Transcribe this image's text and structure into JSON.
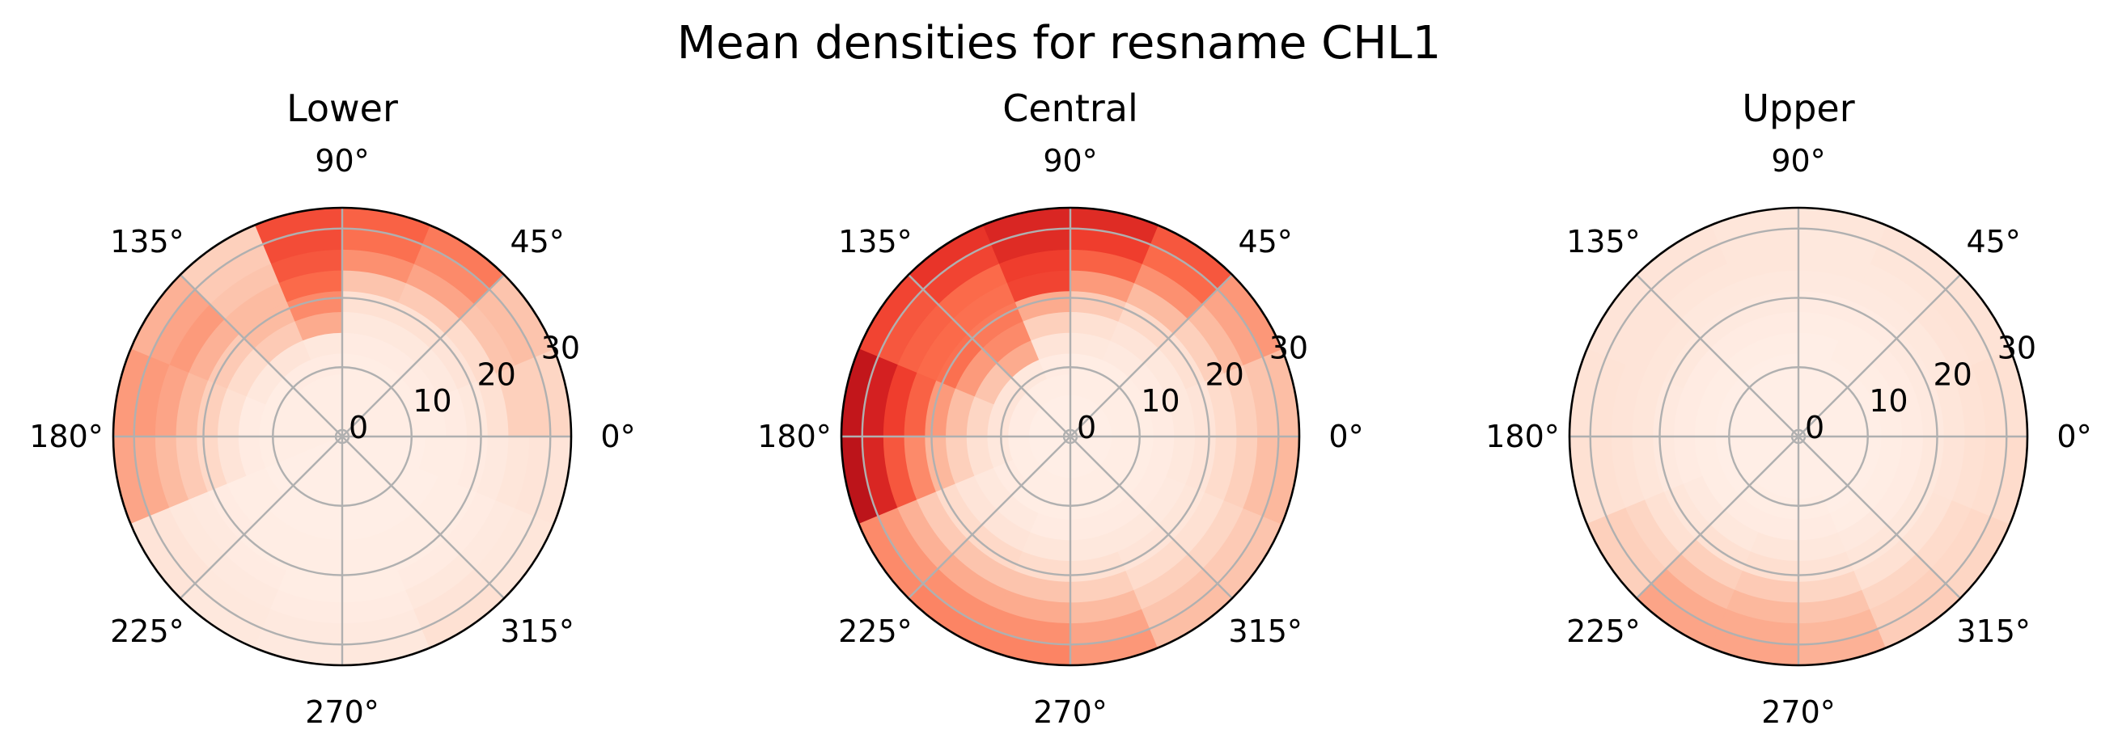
{
  "figure": {
    "title": "Mean densities for resname CHL1"
  },
  "chart_data": [
    {
      "type": "heatmap",
      "projection": "polar",
      "title": "Lower",
      "theta_ticks": [
        "0°",
        "45°",
        "90°",
        "135°",
        "180°",
        "225°",
        "270°",
        "315°"
      ],
      "r_ticks": [
        "0",
        "10",
        "20",
        "30"
      ],
      "r_range": [
        0,
        33
      ],
      "colormap": "Reds",
      "value_range": [
        0,
        1
      ],
      "grid": true,
      "theta_bins": 16,
      "r_edges": [
        0,
        3,
        6,
        9,
        12,
        15,
        18,
        21,
        24,
        27,
        30,
        33
      ],
      "values": [
        [
          0.05,
          0.05,
          0.05,
          0.05,
          0.05,
          0.06,
          0.08,
          0.12,
          0.18,
          0.18,
          0.16
        ],
        [
          0.05,
          0.05,
          0.05,
          0.05,
          0.06,
          0.07,
          0.1,
          0.14,
          0.22,
          0.24,
          0.22
        ],
        [
          0.05,
          0.05,
          0.05,
          0.05,
          0.06,
          0.08,
          0.12,
          0.2,
          0.32,
          0.4,
          0.45
        ],
        [
          0.05,
          0.05,
          0.05,
          0.05,
          0.06,
          0.08,
          0.12,
          0.22,
          0.38,
          0.48,
          0.52
        ],
        [
          0.05,
          0.05,
          0.05,
          0.06,
          0.08,
          0.3,
          0.4,
          0.5,
          0.55,
          0.58,
          0.58
        ],
        [
          0.05,
          0.05,
          0.05,
          0.06,
          0.1,
          0.2,
          0.25,
          0.25,
          0.22,
          0.2,
          0.18
        ],
        [
          0.05,
          0.05,
          0.05,
          0.05,
          0.08,
          0.14,
          0.2,
          0.28,
          0.35,
          0.32,
          0.28
        ],
        [
          0.05,
          0.05,
          0.05,
          0.05,
          0.06,
          0.12,
          0.18,
          0.25,
          0.32,
          0.35,
          0.35
        ],
        [
          0.05,
          0.05,
          0.05,
          0.05,
          0.06,
          0.1,
          0.15,
          0.2,
          0.25,
          0.3,
          0.32
        ],
        [
          0.04,
          0.04,
          0.04,
          0.04,
          0.05,
          0.05,
          0.06,
          0.07,
          0.08,
          0.1,
          0.1
        ],
        [
          0.04,
          0.04,
          0.04,
          0.04,
          0.04,
          0.05,
          0.05,
          0.06,
          0.07,
          0.08,
          0.08
        ],
        [
          0.04,
          0.04,
          0.04,
          0.04,
          0.04,
          0.05,
          0.05,
          0.05,
          0.06,
          0.07,
          0.07
        ],
        [
          0.04,
          0.04,
          0.04,
          0.04,
          0.04,
          0.05,
          0.05,
          0.05,
          0.06,
          0.07,
          0.08
        ],
        [
          0.04,
          0.04,
          0.04,
          0.04,
          0.04,
          0.05,
          0.05,
          0.06,
          0.08,
          0.1,
          0.12
        ],
        [
          0.04,
          0.04,
          0.04,
          0.04,
          0.04,
          0.05,
          0.05,
          0.06,
          0.07,
          0.08,
          0.09
        ],
        [
          0.04,
          0.04,
          0.04,
          0.04,
          0.05,
          0.05,
          0.06,
          0.07,
          0.09,
          0.1,
          0.1
        ]
      ]
    },
    {
      "type": "heatmap",
      "projection": "polar",
      "title": "Central",
      "theta_ticks": [
        "0°",
        "45°",
        "90°",
        "135°",
        "180°",
        "225°",
        "270°",
        "315°"
      ],
      "r_ticks": [
        "0",
        "10",
        "20",
        "30"
      ],
      "r_range": [
        0,
        33
      ],
      "colormap": "Reds",
      "value_range": [
        0,
        1
      ],
      "grid": true,
      "theta_bins": 16,
      "r_edges": [
        0,
        3,
        6,
        9,
        12,
        15,
        18,
        21,
        24,
        27,
        30,
        33
      ],
      "values": [
        [
          0.04,
          0.04,
          0.05,
          0.05,
          0.06,
          0.08,
          0.1,
          0.14,
          0.18,
          0.22,
          0.24
        ],
        [
          0.04,
          0.04,
          0.05,
          0.05,
          0.06,
          0.08,
          0.12,
          0.18,
          0.25,
          0.32,
          0.36
        ],
        [
          0.04,
          0.04,
          0.05,
          0.05,
          0.07,
          0.1,
          0.15,
          0.25,
          0.38,
          0.5,
          0.55
        ],
        [
          0.04,
          0.04,
          0.05,
          0.05,
          0.08,
          0.12,
          0.2,
          0.35,
          0.52,
          0.62,
          0.68
        ],
        [
          0.04,
          0.04,
          0.05,
          0.06,
          0.1,
          0.18,
          0.3,
          0.6,
          0.62,
          0.68,
          0.7
        ],
        [
          0.04,
          0.04,
          0.05,
          0.08,
          0.3,
          0.4,
          0.45,
          0.48,
          0.5,
          0.6,
          0.65
        ],
        [
          0.04,
          0.04,
          0.06,
          0.1,
          0.22,
          0.35,
          0.48,
          0.5,
          0.52,
          0.55,
          0.6
        ],
        [
          0.04,
          0.04,
          0.06,
          0.1,
          0.16,
          0.24,
          0.35,
          0.52,
          0.62,
          0.72,
          0.78
        ],
        [
          0.04,
          0.04,
          0.05,
          0.08,
          0.12,
          0.18,
          0.26,
          0.4,
          0.55,
          0.7,
          0.8
        ],
        [
          0.04,
          0.04,
          0.05,
          0.06,
          0.08,
          0.1,
          0.14,
          0.2,
          0.28,
          0.36,
          0.4
        ],
        [
          0.04,
          0.04,
          0.05,
          0.05,
          0.07,
          0.1,
          0.15,
          0.22,
          0.3,
          0.38,
          0.42
        ],
        [
          0.04,
          0.04,
          0.05,
          0.05,
          0.06,
          0.09,
          0.14,
          0.22,
          0.3,
          0.38,
          0.42
        ],
        [
          0.04,
          0.04,
          0.05,
          0.05,
          0.06,
          0.08,
          0.12,
          0.18,
          0.25,
          0.32,
          0.36
        ],
        [
          0.04,
          0.04,
          0.05,
          0.05,
          0.06,
          0.08,
          0.1,
          0.14,
          0.18,
          0.22,
          0.24
        ],
        [
          0.04,
          0.04,
          0.05,
          0.05,
          0.06,
          0.07,
          0.09,
          0.12,
          0.16,
          0.2,
          0.22
        ],
        [
          0.04,
          0.04,
          0.05,
          0.05,
          0.06,
          0.08,
          0.1,
          0.14,
          0.18,
          0.24,
          0.26
        ]
      ]
    },
    {
      "type": "heatmap",
      "projection": "polar",
      "title": "Upper",
      "theta_ticks": [
        "0°",
        "45°",
        "90°",
        "135°",
        "180°",
        "225°",
        "270°",
        "315°"
      ],
      "r_ticks": [
        "0",
        "10",
        "20",
        "30"
      ],
      "r_range": [
        0,
        33
      ],
      "colormap": "Reds",
      "value_range": [
        0,
        1
      ],
      "grid": true,
      "theta_bins": 16,
      "r_edges": [
        0,
        3,
        6,
        9,
        12,
        15,
        18,
        21,
        24,
        27,
        30,
        33
      ],
      "values": [
        [
          0.04,
          0.04,
          0.04,
          0.04,
          0.05,
          0.06,
          0.07,
          0.09,
          0.11,
          0.12,
          0.12
        ],
        [
          0.04,
          0.04,
          0.04,
          0.04,
          0.05,
          0.06,
          0.07,
          0.08,
          0.1,
          0.11,
          0.11
        ],
        [
          0.04,
          0.04,
          0.04,
          0.04,
          0.05,
          0.05,
          0.06,
          0.07,
          0.08,
          0.09,
          0.1
        ],
        [
          0.04,
          0.04,
          0.04,
          0.04,
          0.04,
          0.05,
          0.06,
          0.07,
          0.08,
          0.08,
          0.09
        ],
        [
          0.04,
          0.04,
          0.04,
          0.04,
          0.05,
          0.06,
          0.07,
          0.08,
          0.09,
          0.09,
          0.09
        ],
        [
          0.04,
          0.04,
          0.04,
          0.04,
          0.05,
          0.06,
          0.07,
          0.08,
          0.09,
          0.1,
          0.1
        ],
        [
          0.04,
          0.04,
          0.04,
          0.04,
          0.05,
          0.06,
          0.08,
          0.09,
          0.1,
          0.1,
          0.1
        ],
        [
          0.04,
          0.04,
          0.04,
          0.04,
          0.05,
          0.06,
          0.07,
          0.09,
          0.1,
          0.11,
          0.11
        ],
        [
          0.04,
          0.04,
          0.04,
          0.04,
          0.05,
          0.06,
          0.07,
          0.09,
          0.11,
          0.12,
          0.12
        ],
        [
          0.04,
          0.04,
          0.04,
          0.04,
          0.05,
          0.07,
          0.09,
          0.12,
          0.16,
          0.18,
          0.18
        ],
        [
          0.04,
          0.04,
          0.04,
          0.05,
          0.06,
          0.08,
          0.12,
          0.18,
          0.24,
          0.3,
          0.32
        ],
        [
          0.04,
          0.04,
          0.04,
          0.05,
          0.06,
          0.09,
          0.13,
          0.2,
          0.26,
          0.3,
          0.32
        ],
        [
          0.04,
          0.04,
          0.04,
          0.05,
          0.06,
          0.08,
          0.11,
          0.16,
          0.22,
          0.26,
          0.28
        ],
        [
          0.04,
          0.04,
          0.04,
          0.04,
          0.05,
          0.07,
          0.09,
          0.12,
          0.16,
          0.18,
          0.19
        ],
        [
          0.04,
          0.04,
          0.04,
          0.04,
          0.05,
          0.06,
          0.08,
          0.11,
          0.14,
          0.15,
          0.16
        ],
        [
          0.04,
          0.04,
          0.04,
          0.04,
          0.05,
          0.06,
          0.08,
          0.1,
          0.12,
          0.13,
          0.14
        ]
      ]
    }
  ]
}
